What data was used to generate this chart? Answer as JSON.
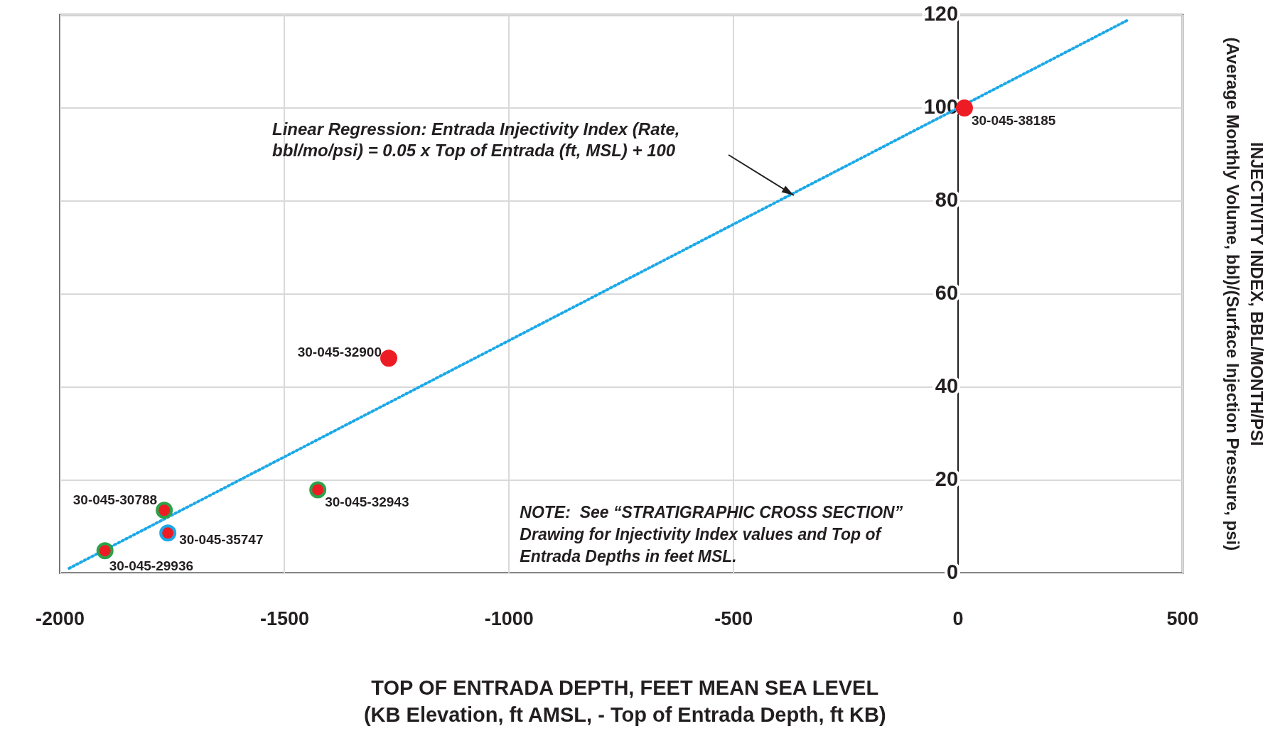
{
  "chart_data": {
    "type": "scatter",
    "xlabel": "TOP OF ENTRADA DEPTH, FEET MEAN SEA LEVEL\n(KB Elevation, ft AMSL, - Top of Entrada Depth, ft KB)",
    "ylabel": "INJECTIVITY INDEX, BBL/MONTH/PSI\n(Average Monthly Volume, bbl)/(Surface Injection Pressure, psi)",
    "xlim": [
      -2000,
      500
    ],
    "xticks": [
      -2000,
      -1500,
      -1000,
      -500,
      0,
      500
    ],
    "ylim": [
      0,
      120
    ],
    "yticks": [
      0,
      20,
      40,
      60,
      80,
      100,
      120
    ],
    "grid": true,
    "legend": false,
    "marker": "circle",
    "series": [
      {
        "color": "#ed1c24",
        "colors": [
          "#ed1c24",
          "#ed1c24",
          "#2ca24a",
          "#2ca24a",
          "#1ba9e8",
          "#2ca24a"
        ],
        "x": [
          14,
          -1268,
          -1426,
          -1768,
          -1760,
          -1900
        ],
        "values": [
          100,
          46.2,
          17.9,
          13.5,
          8.6,
          4.8
        ]
      },
      {
        "type": "line",
        "color": "#1ba9e8",
        "line_style": "dotted",
        "marker": "none",
        "x": [
          -1980,
          380
        ],
        "values": [
          1,
          119
        ]
      }
    ],
    "annotations": [
      {
        "text": "30-045-38185",
        "x": 14,
        "y": 100
      },
      {
        "text": "30-045-32900",
        "x": -1268,
        "y": 46.2
      },
      {
        "text": "30-045-32943",
        "x": -1426,
        "y": 17.9
      },
      {
        "text": "30-045-30788",
        "x": -1768,
        "y": 13.5
      },
      {
        "text": "30-045-35747",
        "x": -1760,
        "y": 8.6
      },
      {
        "text": "30-045-29936",
        "x": -1900,
        "y": 4.8
      },
      "Linear Regression: Entrada Injectivity Index (Rate,\nbbl/mo/psi) = 0.05 x Top of Entrada (ft, MSL) + 100",
      "NOTE:  See “STRATIGRAPHIC CROSS SECTION”\nDrawing for Injectivity Index values and Top of\nEntrada Depths in feet MSL."
    ]
  }
}
